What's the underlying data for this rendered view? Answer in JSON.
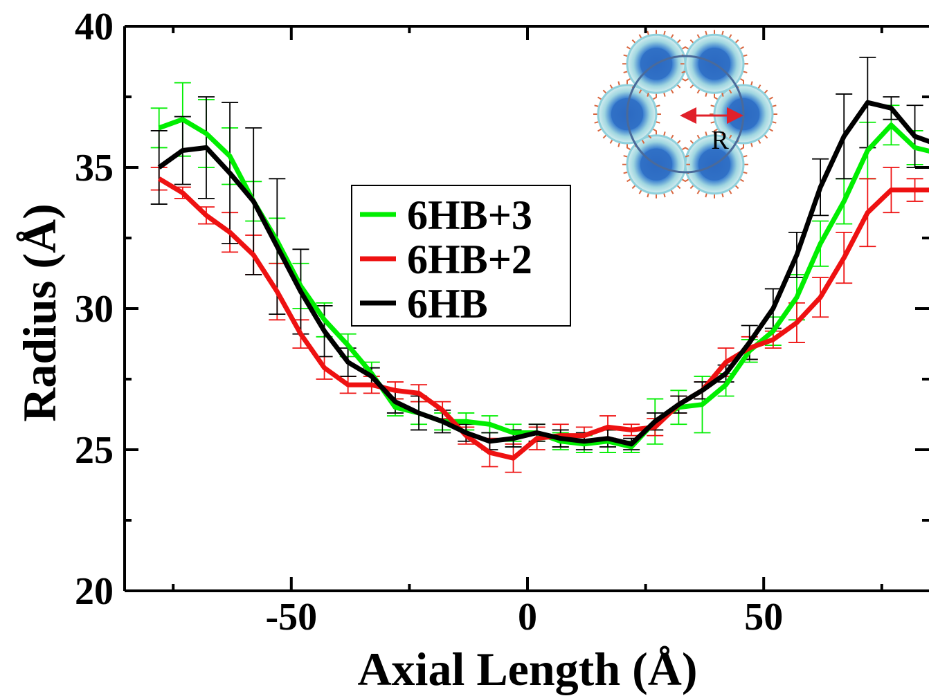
{
  "chart_data": {
    "type": "line",
    "xlabel": "Axial Length (Å)",
    "ylabel": "Radius (Å)",
    "xlim": [
      -85,
      85
    ],
    "ylim": [
      20,
      40
    ],
    "x_ticks": [
      -50,
      0,
      50
    ],
    "y_ticks": [
      20,
      25,
      30,
      35,
      40
    ],
    "x_minor_step": 25,
    "y_minor_step": 2.5,
    "grid": false,
    "legend_position": "center-left",
    "inset": {
      "label": "R",
      "circle_color": "#4a6a9a",
      "arrow_color": "#e0202a",
      "particle_core_color": "#2f6fc4",
      "particle_shell_color": "#8fd0dc",
      "particle_spike_color": "#d9663f"
    },
    "x": [
      -78,
      -73,
      -68,
      -63,
      -58,
      -53,
      -48,
      -43,
      -38,
      -33,
      -28,
      -23,
      -18,
      -13,
      -8,
      -3,
      2,
      7,
      12,
      17,
      22,
      27,
      32,
      37,
      42,
      47,
      52,
      57,
      62,
      67,
      72,
      77,
      82,
      87
    ],
    "series": [
      {
        "name": "6HB+3",
        "color": "#00ee00",
        "values": [
          36.4,
          36.7,
          36.2,
          35.4,
          33.8,
          32.4,
          30.8,
          29.6,
          28.7,
          27.7,
          26.5,
          26.3,
          26.0,
          26.0,
          25.9,
          25.6,
          25.6,
          25.3,
          25.2,
          25.3,
          25.1,
          26.0,
          26.5,
          26.6,
          27.3,
          28.5,
          29.2,
          30.4,
          32.3,
          33.8,
          35.6,
          36.5,
          35.7,
          35.5
        ],
        "errors": [
          0.7,
          1.3,
          1.2,
          1.0,
          0.7,
          0.8,
          0.8,
          0.6,
          0.4,
          0.4,
          0.3,
          0.4,
          0.3,
          0.3,
          0.3,
          0.3,
          0.3,
          0.3,
          0.3,
          0.4,
          0.2,
          0.8,
          0.6,
          1.0,
          0.4,
          0.4,
          0.5,
          0.8,
          0.8,
          0.8,
          1.0,
          0.7,
          0.6,
          0.6
        ]
      },
      {
        "name": "6HB+2",
        "color": "#ee1111",
        "values": [
          34.6,
          34.1,
          33.3,
          32.7,
          31.9,
          30.6,
          29.1,
          27.9,
          27.3,
          27.3,
          27.1,
          27.0,
          26.4,
          25.5,
          24.9,
          24.7,
          25.4,
          25.5,
          25.5,
          25.8,
          25.7,
          25.8,
          26.6,
          27.1,
          28.1,
          28.6,
          28.9,
          29.5,
          30.4,
          31.8,
          33.4,
          34.2,
          34.2,
          34.2
        ],
        "errors": [
          0.4,
          0.2,
          0.3,
          0.7,
          0.7,
          1.0,
          0.5,
          0.4,
          0.3,
          0.3,
          0.3,
          0.3,
          0.3,
          0.3,
          0.5,
          0.5,
          0.4,
          0.4,
          0.3,
          0.4,
          0.2,
          0.3,
          0.3,
          0.3,
          0.5,
          0.4,
          0.3,
          0.7,
          0.7,
          0.9,
          1.2,
          0.8,
          0.4,
          0.4
        ]
      },
      {
        "name": "6HB",
        "color": "#000000",
        "values": [
          35.0,
          35.6,
          35.7,
          34.8,
          33.8,
          32.2,
          30.6,
          29.2,
          28.1,
          27.6,
          26.7,
          26.3,
          26.0,
          25.6,
          25.3,
          25.4,
          25.6,
          25.4,
          25.3,
          25.4,
          25.2,
          26.0,
          26.6,
          27.1,
          27.7,
          28.8,
          30.0,
          31.9,
          34.3,
          36.1,
          37.3,
          37.1,
          36.1,
          35.8
        ],
        "errors": [
          1.3,
          1.2,
          1.8,
          2.5,
          2.6,
          2.4,
          1.5,
          0.9,
          0.5,
          0.3,
          0.4,
          0.6,
          0.4,
          0.3,
          0.3,
          0.3,
          0.3,
          0.3,
          0.3,
          0.3,
          0.2,
          0.3,
          0.3,
          0.3,
          0.3,
          0.6,
          0.7,
          0.8,
          1.0,
          1.5,
          1.6,
          0.4,
          1.1,
          1.1
        ]
      }
    ]
  }
}
